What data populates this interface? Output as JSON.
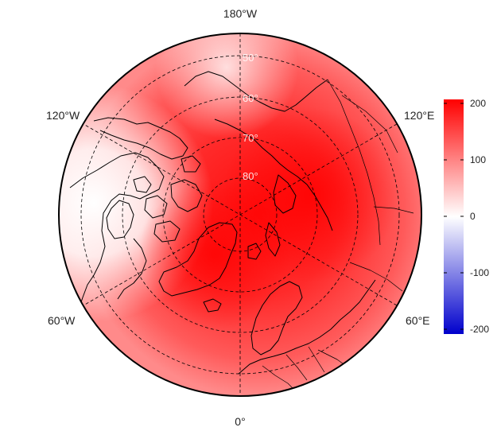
{
  "map": {
    "projection": "north-polar-stereographic",
    "field": "diverging-red-white-blue",
    "longitude_labels": [
      "180°W",
      "120°E",
      "60°E",
      "0°",
      "60°W",
      "120°W"
    ],
    "latitude_labels": [
      "50°",
      "60°",
      "70°",
      "80°"
    ],
    "colors": {
      "low": "#0000cc",
      "mid": "#ffffff",
      "high": "#ff0000",
      "coastline": "#000000",
      "graticule": "#000000"
    }
  },
  "colorbar": {
    "min": -200,
    "max": 200,
    "ticks": [
      "200",
      "100",
      "0",
      "-100",
      "-200"
    ]
  }
}
